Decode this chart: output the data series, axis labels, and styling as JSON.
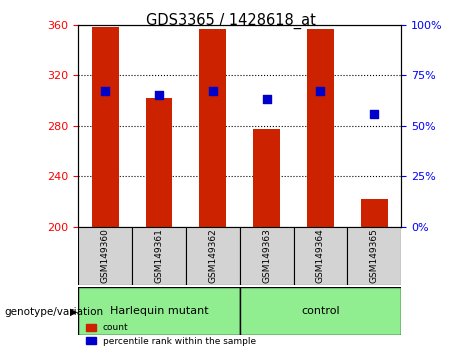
{
  "title": "GDS3365 / 1428618_at",
  "samples": [
    "GSM149360",
    "GSM149361",
    "GSM149362",
    "GSM149363",
    "GSM149364",
    "GSM149365"
  ],
  "count_values": [
    358,
    302,
    357,
    277,
    357,
    222
  ],
  "percentile_values": [
    67,
    65,
    67,
    63,
    67,
    56
  ],
  "y_min": 200,
  "y_max": 360,
  "y_ticks": [
    200,
    240,
    280,
    320,
    360
  ],
  "right_y_ticks": [
    0,
    25,
    50,
    75,
    100
  ],
  "bar_color": "#cc2200",
  "square_color": "#0000cc",
  "group1_label": "Harlequin mutant",
  "group2_label": "control",
  "group1_indices": [
    0,
    1,
    2
  ],
  "group2_indices": [
    3,
    4,
    5
  ],
  "group_bg_color": "#90ee90",
  "sample_bg_color": "#d3d3d3",
  "legend_count_label": "count",
  "legend_percentile_label": "percentile rank within the sample",
  "xlabel_area": "genotype/variation"
}
